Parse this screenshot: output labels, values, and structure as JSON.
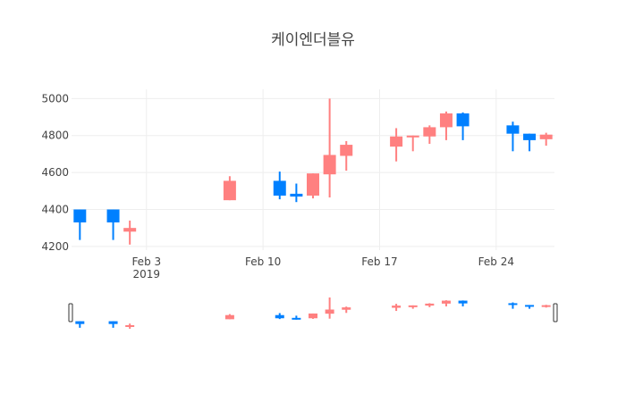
{
  "chart_data": {
    "type": "candlestick",
    "title": "케이엔더블유",
    "xlabel": "",
    "ylabel": "",
    "ylim": [
      4180,
      5050
    ],
    "y_ticks": [
      4200,
      4400,
      4600,
      4800,
      5000
    ],
    "x_ticks": [
      {
        "date": "2019-02-03",
        "label": "Feb 3",
        "sublabel": "2019"
      },
      {
        "date": "2019-02-10",
        "label": "Feb 10",
        "sublabel": ""
      },
      {
        "date": "2019-02-17",
        "label": "Feb 17",
        "sublabel": ""
      },
      {
        "date": "2019-02-24",
        "label": "Feb 24",
        "sublabel": ""
      }
    ],
    "x_range": [
      "2019-01-29T12:00",
      "2019-02-27T12:00"
    ],
    "grid": true,
    "rangeslider": true,
    "colors": {
      "increasing": "#ff8080",
      "decreasing": "#0080ff"
    },
    "candles": [
      {
        "date": "2019-01-30",
        "open": 4400,
        "high": 4400,
        "low": 4235,
        "close": 4330
      },
      {
        "date": "2019-02-01",
        "open": 4400,
        "high": 4400,
        "low": 4235,
        "close": 4330
      },
      {
        "date": "2019-02-02",
        "open": 4280,
        "high": 4340,
        "low": 4210,
        "close": 4300
      },
      {
        "date": "2019-02-08",
        "open": 4450,
        "high": 4580,
        "low": 4450,
        "close": 4555
      },
      {
        "date": "2019-02-11",
        "open": 4555,
        "high": 4605,
        "low": 4455,
        "close": 4475
      },
      {
        "date": "2019-02-12",
        "open": 4485,
        "high": 4540,
        "low": 4440,
        "close": 4470
      },
      {
        "date": "2019-02-13",
        "open": 4475,
        "high": 4595,
        "low": 4460,
        "close": 4595
      },
      {
        "date": "2019-02-14",
        "open": 4590,
        "high": 5000,
        "low": 4465,
        "close": 4695
      },
      {
        "date": "2019-02-15",
        "open": 4690,
        "high": 4770,
        "low": 4610,
        "close": 4750
      },
      {
        "date": "2019-02-18",
        "open": 4740,
        "high": 4840,
        "low": 4660,
        "close": 4795
      },
      {
        "date": "2019-02-19",
        "open": 4790,
        "high": 4800,
        "low": 4715,
        "close": 4800
      },
      {
        "date": "2019-02-20",
        "open": 4795,
        "high": 4855,
        "low": 4755,
        "close": 4845
      },
      {
        "date": "2019-02-21",
        "open": 4845,
        "high": 4930,
        "low": 4775,
        "close": 4920
      },
      {
        "date": "2019-02-22",
        "open": 4920,
        "high": 4925,
        "low": 4775,
        "close": 4850
      },
      {
        "date": "2019-02-25",
        "open": 4855,
        "high": 4875,
        "low": 4715,
        "close": 4810
      },
      {
        "date": "2019-02-26",
        "open": 4810,
        "high": 4810,
        "low": 4715,
        "close": 4775
      },
      {
        "date": "2019-02-27",
        "open": 4780,
        "high": 4815,
        "low": 4745,
        "close": 4805
      }
    ]
  }
}
